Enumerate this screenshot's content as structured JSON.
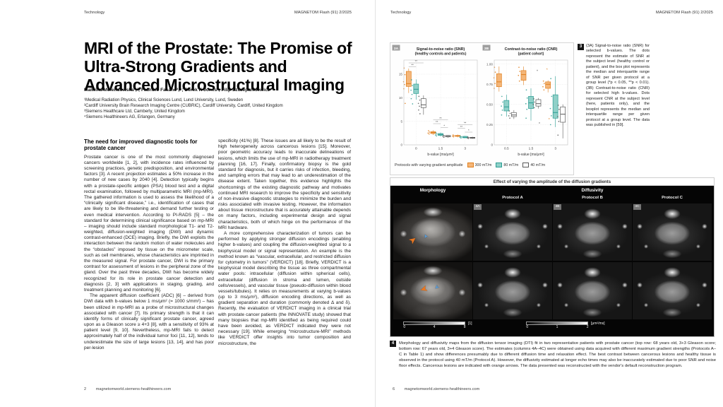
{
  "page_left": {
    "header_left": "Technology",
    "header_right": "MAGNETOM Flash (91) 2/2025",
    "title": "MRI of the Prostate: The Promise of Ultra-Strong Gradients and Advanced Microstructural Imaging",
    "authors": "Malwina Molendowska¹,²; Fabrizio Fasano³,⁴; Derek K Jones²; Filip Szczepankiewicz¹",
    "affiliations": [
      "¹Medical Radiation Physics, Clinical Sciences Lund, Lund University, Lund, Sweden",
      "²Cardiff University Brain Research Imaging Centre (CUBRIC), Cardiff University, Cardiff, United Kingdom",
      "³Siemens Healthcare Ltd, Camberly, United Kingdom",
      "⁴Siemens Healthineers AG, Erlangen, Germany"
    ],
    "column1": {
      "heading": "The need for improved diagnostic tools for prostate cancer",
      "para1": "Prostate cancer is one of the most commonly diagnosed cancers worldwide [1, 2], with incidence rates influenced by screening practices, genetic predisposition, and environmental factors [3]. A recent projection estimates a 50% increase in the number of new cases by 2040 [4]. Detection typically begins with a prostate-specific antigen (PSA) blood test and a digital rectal examination, followed by multiparametric MRI (mp-MRI). The gathered information is used to assess the likelihood of a “clinically significant disease,” i.e., identification of cases that are likely to be life-threatening and demand further testing or even medical intervention. According to PI-RADS [5] – the standard for determining clinical significance based on mp-MRI – imaging should include standard morphological T1- and T2-weighted, diffusion-weighted imaging (DWI) and dynamic contrast-enhanced (DCE) imaging. Briefly, the DWI exploits the interaction between the random motion of water molecules and the “obstacles” imposed by tissue on the micrometer scale, such as cell membranes, whose characteristics are imprinted in the measured signal. For prostate cancer, DWI is the primary contrast for assessment of lesions in the peripheral zone of the gland. Over the past three decades, DWI has become widely recognized for its role in prostate cancer detection and diagnosis [2, 3] with applications in staging, grading, and treatment planning and monitoring [6].",
      "para2": "The apparent diffusion coefficient (ADC) [6] – derived from DWI data with b-values below 1 ms/μm² (= 1000 s/mm²) – has been utilized in mp-MRI as a probe of microstructural changes associated with cancer [7]. Its primary strength is that it can identify forms of clinically significant prostate cancer, agreed upon as a Gleason score ≥ 4+3 [8], with a sensitivity of 93% at patient level [9, 10]. Nevertheless, mp-MRI fails to detect approximately half of the individual tumor foci [11, 12], tends to underestimate the size of large lesions [13, 14], and has poor per-lesion"
    },
    "column2": {
      "para1": "specificity (41%) [8]. These issues are all likely to be the result of high heterogeneity across cancerous lesions [15]. Moreover, poor geometric accuracy leads to inaccurate delineations of lesions, which limits the use of mp-MRI in radiotherapy treatment planning [16, 17]. Finally, confirmatory biopsy is the gold standard for diagnosis, but it carries risks of infection, bleeding, and sampling errors that may lead to an underestimation of the disease extent. Taken together, this evidence highlights the shortcomings of the existing diagnostic pathway and motivates continued MRI research to improve the specificity and sensitivity of non-invasive diagnostic strategies to minimize the burden and risks associated with invasive testing. However, the information about tissue microstructure that is accurately attainable depends on many factors, including experimental design and signal characteristics, both of which hinge on the performance of the MRI hardware.",
      "para2": "A more comprehensive characterization of tumors can be performed by applying stronger diffusion encodings (enabling higher b-values) and coupling the diffusion-weighted signal to a biophysical model or signal representation. An example is the method known as “vascular, extracellular, and restricted diffusion for cytometry in tumors” (VERDICT) [18]. Briefly, VERDICT is a biophysical model describing the tissue as three compartmental water pools: intracellular (diffusion within spherical cells), extracellular (diffusion in stroma and lumen, outside cells/vessels), and vascular tissue (pseudo-diffusion within blood vessels/tubules). It relies on measurements at varying b-values (up to 3 ms/μm²), diffusion encoding directions, as well as gradient separation and duration (commonly denoted Δ and δ). Recently, the evaluation of VERDICT imaging in a clinical trial with prostate cancer patients (the INNOVATE study) showed that many biopsies that mp-MRI identified as being required could have been avoided, as VERDICT indicated they were not necessary [19]. While emerging “microstructure-MRI” methods like VERDICT offer insights into tumor composition and microstructure, the"
    },
    "footer_page": "2",
    "footer_url": "magnetomworld.siemens-healthineers.com"
  },
  "page_right": {
    "header_left": "Technology",
    "header_right": "MAGNETOM Flash (91) 2/2025",
    "figure3": {
      "number": "3",
      "caption": "(3A) Signal-to-noise ratio (SNR) for selected b-values. The dots represent the estimate of SNR at the subject level (healthy control or patient), and the box plot represents the median and interquartile range of SNR per given protocol at a group level (*p < 0.05, **p < 0.01). (3B) Contrast-to-noise ratio (CNR) for selected high b-values. Dots represent CNR at the subject level (here, patients only), and the boxplot represents the median and interquartile range per given protocol at a group level. The data was published in [59].",
      "legend_title": "Protocols with varying gradient amplitude",
      "legend": [
        "300 mT/m",
        "80 mT/m",
        "40 mT/m"
      ]
    },
    "figure4": {
      "number": "4",
      "header": "Effect of varying the amplitude of the diffusion gradients",
      "col_morphology": "Morphology",
      "col_diffusivity": "Diffusivity",
      "protocols": [
        "Protocol A",
        "Protocol B",
        "Protocol C"
      ],
      "tile_labels": [
        "4A",
        "4B",
        "4C"
      ],
      "scalebar_left": {
        "ticks": [
          "0",
          "4",
          "8"
        ],
        "unit": "[1]"
      },
      "scalebar_right": {
        "ticks": [
          "0",
          "1",
          "2"
        ],
        "unit": "[μm²/ms]"
      },
      "caption": "Morphology and diffusivity maps from the diffusion tensor imaging (DTI) fit in two representative patients with prostate cancer (top row: 68 years old, 3+3 Gleason score; bottom row: 67 years old, 3+4 Gleason score). The estimates (columns 4A–4C) were obtained using data acquired with different maximum gradient strengths (Protocols A–C in Table 1) and show differences presumably due to different diffusion time and relaxation effect. The best contrast between cancerous lesions and healthy tissue is observed in the protocol using 40 mT/m (Protocol A). However, the diffusivity estimated at longer echo times may also be inaccurately estimated due to poor SNR and noise floor effects. Cancerous lesions are indicated with orange arrows. The data presented was reconstructed with the vendor's default reconstruction program."
    },
    "footer_page": "6",
    "footer_url": "magnetomworld.siemens-healthineers.com"
  },
  "chart_data": [
    {
      "id": "3A",
      "type": "box",
      "title": "Signal-to-noise ratio (SNR)",
      "subtitle": "(healthy controls and patients)",
      "xlabel": "b-value [ms/μm²]",
      "ylim": [
        0,
        18
      ],
      "yticks": [
        {
          "v": 0,
          "l": "0"
        },
        {
          "v": 5,
          "l": "5"
        },
        {
          "v": 10,
          "l": "10"
        },
        {
          "v": 15,
          "l": "15"
        }
      ],
      "categories": [
        "0",
        "1.5",
        "3"
      ],
      "legend_position": "bottom",
      "series": [
        {
          "name": "300 mT/m",
          "fill": "#F4B679",
          "stroke": "#E07F1D",
          "boxes": [
            {
              "lo": 11.0,
              "q1": 12.4,
              "med": 13.0,
              "q3": 15.6,
              "hi": 16.2,
              "dots": [
                16.3,
                14.9,
                13.4,
                12.8,
                11.9,
                8.8
              ]
            },
            {
              "lo": 2.1,
              "q1": 2.4,
              "med": 2.6,
              "q3": 2.8,
              "hi": 3.1,
              "dots": [
                3.0,
                2.7,
                2.5,
                2.3
              ]
            },
            {
              "lo": 1.6,
              "q1": 1.8,
              "med": 1.9,
              "q3": 2.0,
              "hi": 2.2,
              "dots": [
                2.1,
                1.95,
                1.85,
                1.7
              ]
            }
          ]
        },
        {
          "name": "80 mT/m",
          "fill": "#8FD0C8",
          "stroke": "#2B9C92",
          "boxes": [
            {
              "lo": 9.6,
              "q1": 10.9,
              "med": 11.8,
              "q3": 12.9,
              "hi": 13.9,
              "dots": [
                13.8,
                12.6,
                11.6,
                10.7,
                9.8,
                8.7
              ]
            },
            {
              "lo": 1.8,
              "q1": 2.0,
              "med": 2.2,
              "q3": 2.4,
              "hi": 2.6,
              "dots": [
                2.55,
                2.3,
                2.1,
                1.9
              ]
            },
            {
              "lo": 1.4,
              "q1": 1.5,
              "med": 1.6,
              "q3": 1.8,
              "hi": 1.9,
              "dots": [
                1.85,
                1.7,
                1.6,
                1.45
              ]
            }
          ]
        },
        {
          "name": "40 mT/m",
          "fill": "#FFFFFF",
          "stroke": "#5A5A5A",
          "boxes": [
            {
              "lo": 6.4,
              "q1": 7.9,
              "med": 8.5,
              "q3": 9.8,
              "hi": 10.5,
              "dots": [
                10.3,
                9.5,
                8.8,
                8.2,
                7.4,
                6.6
              ]
            },
            {
              "lo": 1.5,
              "q1": 1.7,
              "med": 1.8,
              "q3": 2.0,
              "hi": 2.1,
              "dots": [
                2.05,
                1.9,
                1.75,
                1.6
              ]
            },
            {
              "lo": 1.3,
              "q1": 1.4,
              "med": 1.5,
              "q3": 1.6,
              "hi": 1.7,
              "dots": [
                1.65,
                1.55,
                1.45,
                1.35
              ]
            }
          ]
        }
      ],
      "annotations": [
        {
          "g": 0,
          "a": 0,
          "b": 2,
          "y": 17.4,
          "label": "**"
        },
        {
          "g": 0,
          "a": 0,
          "b": 1,
          "y": 16.6,
          "label": "**"
        },
        {
          "g": 1,
          "a": 0,
          "b": 2,
          "y": 5.3,
          "label": "**"
        },
        {
          "g": 1,
          "a": 0,
          "b": 1,
          "y": 4.5,
          "label": "**"
        },
        {
          "g": 1,
          "a": 1,
          "b": 2,
          "y": 3.7,
          "label": "*"
        },
        {
          "g": 2,
          "a": 0,
          "b": 2,
          "y": 4.3,
          "label": "**"
        },
        {
          "g": 2,
          "a": 0,
          "b": 1,
          "y": 3.5,
          "label": "**"
        },
        {
          "g": 2,
          "a": 1,
          "b": 2,
          "y": 2.7,
          "label": "*"
        }
      ]
    },
    {
      "id": "3B",
      "type": "box",
      "title": "Contrast-to-noise ratio (CNR)",
      "subtitle": "(patient cohort)",
      "xlabel": "b-value [ms/μm²]",
      "ylim": [
        0,
        1.05
      ],
      "yticks": [
        {
          "v": 0,
          "l": "0"
        },
        {
          "v": 0.25,
          "l": "0.25"
        },
        {
          "v": 0.5,
          "l": "0.50"
        },
        {
          "v": 0.75,
          "l": "0.75"
        },
        {
          "v": 1.0,
          "l": "1.00"
        }
      ],
      "categories": [
        "0.5",
        "1.5",
        "3"
      ],
      "legend_position": "bottom",
      "series": [
        {
          "name": "300 mT/m",
          "fill": "#F4B679",
          "stroke": "#E07F1D",
          "boxes": [
            {
              "lo": 0.66,
              "q1": 0.72,
              "med": 0.78,
              "q3": 0.88,
              "hi": 0.97,
              "dots": [
                0.96,
                0.9,
                0.83,
                0.76,
                0.7
              ]
            },
            {
              "lo": 0.74,
              "q1": 0.8,
              "med": 0.87,
              "q3": 0.92,
              "hi": 0.97,
              "dots": [
                0.96,
                0.91,
                0.86,
                0.79
              ]
            },
            {
              "lo": 0.65,
              "q1": 0.7,
              "med": 0.75,
              "q3": 0.78,
              "hi": 0.8,
              "out": [
                0.93,
                0.31
              ],
              "dots": [
                0.79,
                0.76,
                0.72,
                0.68
              ]
            }
          ]
        },
        {
          "name": "80 mT/m",
          "fill": "#8FD0C8",
          "stroke": "#2B9C92",
          "boxes": [
            {
              "lo": 0.35,
              "q1": 0.42,
              "med": 0.47,
              "q3": 0.55,
              "hi": 0.62,
              "dots": [
                0.6,
                0.53,
                0.48,
                0.43,
                0.37
              ]
            },
            {
              "lo": 0.3,
              "q1": 0.45,
              "med": 0.52,
              "q3": 0.6,
              "hi": 0.7,
              "dots": [
                0.68,
                0.58,
                0.51,
                0.44,
                0.33
              ]
            },
            {
              "lo": 0.22,
              "q1": 0.33,
              "med": 0.4,
              "q3": 0.62,
              "hi": 0.85,
              "dots": [
                0.82,
                0.6,
                0.45,
                0.36,
                0.25
              ]
            }
          ]
        },
        {
          "name": "40 mT/m",
          "fill": "#FFFFFF",
          "stroke": "#5A5A5A",
          "boxes": [
            {
              "lo": 0.32,
              "q1": 0.35,
              "med": 0.37,
              "q3": 0.4,
              "hi": 0.43,
              "dots": [
                0.42,
                0.39,
                0.36,
                0.33
              ]
            },
            {
              "lo": 0.45,
              "q1": 0.48,
              "med": 0.51,
              "q3": 0.56,
              "hi": 0.58,
              "out": [
                0.91,
                0.26
              ],
              "dots": [
                0.57,
                0.53,
                0.5,
                0.46
              ]
            },
            {
              "lo": 0.08,
              "q1": 0.28,
              "med": 0.38,
              "q3": 0.47,
              "hi": 0.5,
              "dots": [
                0.49,
                0.44,
                0.35,
                0.29,
                0.12
              ]
            }
          ]
        }
      ],
      "annotations": []
    }
  ]
}
